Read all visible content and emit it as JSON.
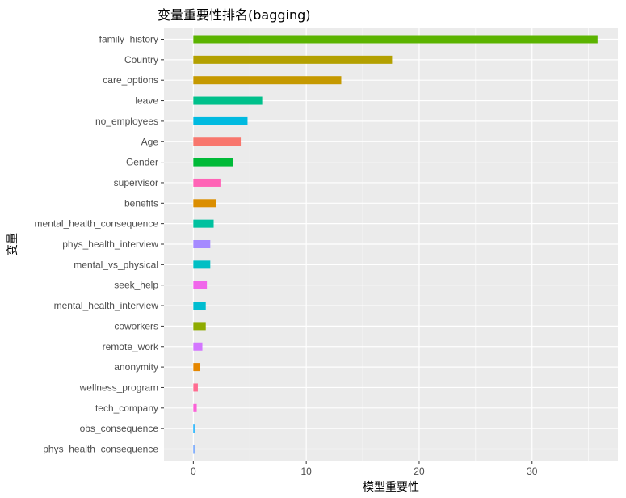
{
  "chart_data": {
    "type": "bar",
    "orientation": "horizontal",
    "title": "变量重要性排名(bagging)",
    "xlabel": "模型重要性",
    "ylabel": "变量",
    "xlim": [
      -2.6,
      37.6
    ],
    "xticks": [
      0,
      10,
      20,
      30
    ],
    "grid": true,
    "legend": "none",
    "categories": [
      "family_history",
      "Country",
      "care_options",
      "leave",
      "no_employees",
      "Age",
      "Gender",
      "supervisor",
      "benefits",
      "mental_health_consequence",
      "phys_health_interview",
      "mental_vs_physical",
      "seek_help",
      "mental_health_interview",
      "coworkers",
      "remote_work",
      "anonymity",
      "wellness_program",
      "tech_company",
      "obs_consequence",
      "phys_health_consequence"
    ],
    "values": [
      35.8,
      17.6,
      13.1,
      6.1,
      4.8,
      4.2,
      3.5,
      2.4,
      2.0,
      1.8,
      1.5,
      1.5,
      1.2,
      1.1,
      1.1,
      0.8,
      0.6,
      0.4,
      0.3,
      0.1,
      0.1
    ],
    "colors": [
      "#5BB300",
      "#B3A000",
      "#C59900",
      "#00C08B",
      "#00BAE0",
      "#F8766D",
      "#00BA38",
      "#FF63B6",
      "#DB8E00",
      "#00C19F",
      "#A58AFF",
      "#00BFC4",
      "#F066EA",
      "#00BDD0",
      "#8EAB00",
      "#D376FF",
      "#E58700",
      "#FF6C91",
      "#FB61D7",
      "#00A9FF",
      "#619CFF"
    ]
  }
}
